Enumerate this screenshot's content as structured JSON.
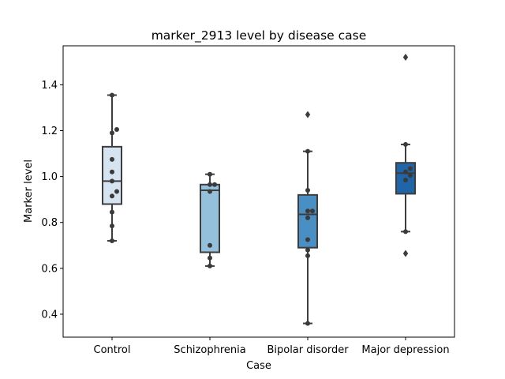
{
  "chart_data": {
    "type": "box",
    "title": "marker_2913 level by disease case",
    "xlabel": "Case",
    "ylabel": "Marker level",
    "ylim": [
      0.3,
      1.57
    ],
    "yticks": [
      0.4,
      0.6,
      0.8,
      1.0,
      1.2,
      1.4
    ],
    "ytick_labels": [
      "0.4",
      "0.6",
      "0.8",
      "1.0",
      "1.2",
      "1.4"
    ],
    "grid": false,
    "categories": [
      "Control",
      "Schizophrenia",
      "Bipolar disorder",
      "Major depression"
    ],
    "colors": [
      "#d6e4f2",
      "#94c0dc",
      "#4a8fc4",
      "#1f65a8"
    ],
    "boxes": [
      {
        "q1": 0.88,
        "median": 0.98,
        "q3": 1.13,
        "whisker_low": 0.72,
        "whisker_high": 1.355,
        "outliers": []
      },
      {
        "q1": 0.67,
        "median": 0.94,
        "q3": 0.965,
        "whisker_low": 0.61,
        "whisker_high": 1.01,
        "outliers": []
      },
      {
        "q1": 0.69,
        "median": 0.835,
        "q3": 0.92,
        "whisker_low": 0.36,
        "whisker_high": 1.11,
        "outliers": [
          1.27
        ]
      },
      {
        "q1": 0.925,
        "median": 1.015,
        "q3": 1.06,
        "whisker_low": 0.76,
        "whisker_high": 1.14,
        "outliers": [
          0.665,
          1.52
        ]
      }
    ],
    "points": [
      [
        0.72,
        0.785,
        0.845,
        0.915,
        0.935,
        0.98,
        1.02,
        1.075,
        1.19,
        1.205,
        1.355
      ],
      [
        0.61,
        0.645,
        0.7,
        0.935,
        0.965,
        0.965,
        1.01
      ],
      [
        0.36,
        0.655,
        0.68,
        0.725,
        0.82,
        0.85,
        0.85,
        0.94,
        1.11
      ],
      [
        0.76,
        0.985,
        1.005,
        1.02,
        1.035,
        1.14
      ]
    ]
  }
}
